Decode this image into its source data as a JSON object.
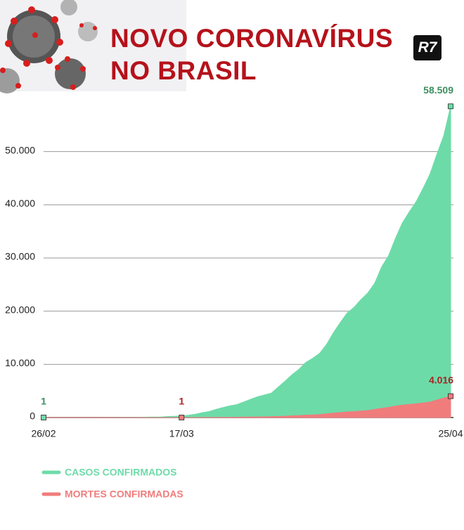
{
  "header": {
    "title": "NOVO CORONAVÍRUS NO BRASIL",
    "logo": "R7"
  },
  "chart_data": {
    "type": "area",
    "categories": [
      "26/02",
      null,
      null,
      null,
      null,
      null,
      null,
      null,
      null,
      null,
      null,
      null,
      null,
      null,
      null,
      null,
      null,
      null,
      null,
      null,
      "17/03",
      null,
      null,
      null,
      null,
      null,
      null,
      null,
      null,
      null,
      null,
      null,
      null,
      null,
      null,
      null,
      null,
      null,
      null,
      null,
      null,
      null,
      null,
      null,
      null,
      null,
      null,
      null,
      null,
      null,
      null,
      null,
      null,
      null,
      null,
      null,
      null,
      null,
      null,
      "25/04"
    ],
    "series": [
      {
        "name": "CASOS CONFIRMADOS",
        "color": "#6ddba8",
        "label_color": "#3c8f60",
        "values": [
          1,
          1,
          1,
          2,
          2,
          2,
          2,
          3,
          8,
          13,
          19,
          25,
          25,
          34,
          52,
          77,
          98,
          121,
          200,
          234,
          291,
          428,
          621,
          904,
          1128,
          1546,
          1891,
          2201,
          2433,
          2915,
          3417,
          3904,
          4256,
          4579,
          5717,
          6836,
          8044,
          9056,
          10360,
          11130,
          12056,
          13717,
          15927,
          17857,
          19638,
          20727,
          22169,
          23430,
          25262,
          28320,
          30425,
          33682,
          36599,
          38654,
          40581,
          43079,
          45757,
          49492,
          52995,
          58509
        ],
        "value_labels": [
          "1",
          null,
          null,
          null,
          null,
          null,
          null,
          null,
          null,
          null,
          null,
          null,
          null,
          null,
          null,
          null,
          null,
          null,
          null,
          null,
          null,
          null,
          null,
          null,
          null,
          null,
          null,
          null,
          null,
          null,
          null,
          null,
          null,
          null,
          null,
          null,
          null,
          null,
          null,
          null,
          null,
          null,
          null,
          null,
          null,
          null,
          null,
          null,
          null,
          null,
          null,
          null,
          null,
          null,
          null,
          null,
          null,
          null,
          null,
          "58.509"
        ]
      },
      {
        "name": "MORTES CONFIRMADAS",
        "color": "#f07c7c",
        "label_color": "#a82424",
        "values": [
          0,
          0,
          0,
          0,
          0,
          0,
          0,
          0,
          0,
          0,
          0,
          0,
          0,
          0,
          0,
          0,
          0,
          0,
          0,
          0,
          1,
          4,
          7,
          11,
          18,
          25,
          34,
          46,
          57,
          77,
          92,
          114,
          136,
          159,
          201,
          240,
          324,
          359,
          445,
          486,
          564,
          686,
          819,
          950,
          1057,
          1124,
          1223,
          1328,
          1532,
          1736,
          1924,
          2141,
          2354,
          2462,
          2587,
          2741,
          2906,
          3313,
          3670,
          4016
        ],
        "value_labels": [
          null,
          null,
          null,
          null,
          null,
          null,
          null,
          null,
          null,
          null,
          null,
          null,
          null,
          null,
          null,
          null,
          null,
          null,
          null,
          null,
          "1",
          null,
          null,
          null,
          null,
          null,
          null,
          null,
          null,
          null,
          null,
          null,
          null,
          null,
          null,
          null,
          null,
          null,
          null,
          null,
          null,
          null,
          null,
          null,
          null,
          null,
          null,
          null,
          null,
          null,
          null,
          null,
          null,
          null,
          null,
          null,
          null,
          null,
          null,
          "4.016"
        ]
      }
    ],
    "ylim": [
      0,
      60000
    ],
    "yticks": [
      0,
      {
        "value": 10000,
        "label": "10.000"
      },
      {
        "value": 20000,
        "label": "20.000"
      },
      {
        "value": 30000,
        "label": "30.000"
      },
      {
        "value": 40000,
        "label": "40.000"
      },
      {
        "value": 50000,
        "label": "50.000"
      }
    ],
    "grid": true
  }
}
